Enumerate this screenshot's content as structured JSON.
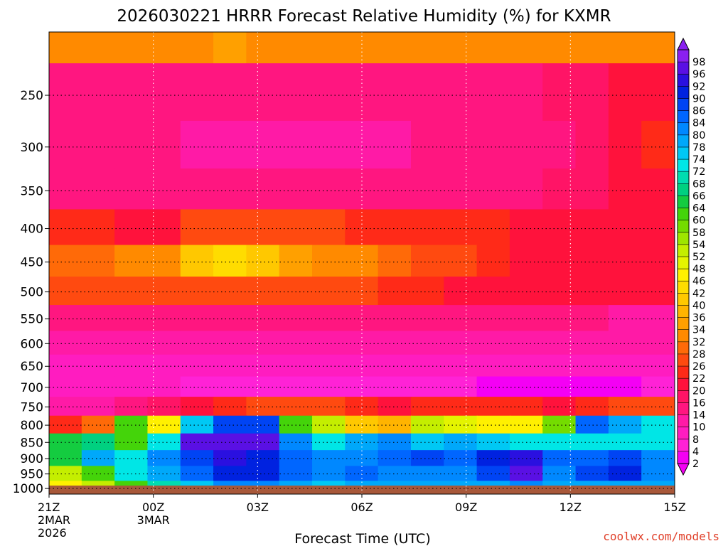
{
  "chart_data": {
    "type": "heatmap",
    "title": "2026030221 HRRR Forecast Relative Humidity (%) for KXMR",
    "xlabel": "Forecast Time (UTC)",
    "ylabel": "",
    "credit": "coolwx.com/models",
    "x_ticks": [
      {
        "hour": 0,
        "lines": [
          "21Z",
          "2MAR",
          "2026"
        ]
      },
      {
        "hour": 3,
        "lines": [
          "00Z",
          "3MAR"
        ]
      },
      {
        "hour": 6,
        "lines": [
          "03Z"
        ]
      },
      {
        "hour": 9,
        "lines": [
          "06Z"
        ]
      },
      {
        "hour": 12,
        "lines": [
          "09Z"
        ]
      },
      {
        "hour": 15,
        "lines": [
          "12Z"
        ]
      },
      {
        "hour": 18,
        "lines": [
          "15Z"
        ]
      }
    ],
    "y_ticks": [
      250,
      300,
      350,
      400,
      450,
      500,
      550,
      600,
      650,
      700,
      750,
      800,
      850,
      900,
      950,
      1000
    ],
    "ylim": [
      1020,
      200
    ],
    "y_scale": "log",
    "xlim": [
      0,
      18
    ],
    "grid": true,
    "colorbar": {
      "levels": [
        2,
        4,
        8,
        10,
        14,
        16,
        20,
        22,
        26,
        28,
        32,
        34,
        36,
        40,
        42,
        46,
        48,
        52,
        54,
        58,
        60,
        64,
        66,
        68,
        72,
        74,
        78,
        80,
        84,
        86,
        90,
        92,
        96,
        98
      ],
      "colors": [
        "#f400f4",
        "#ff22d6",
        "#ff1cc0",
        "#ff1aa6",
        "#ff1680",
        "#ff1466",
        "#ff123c",
        "#ff2a18",
        "#ff4a10",
        "#ff6a08",
        "#ff8a00",
        "#ffa000",
        "#ffb400",
        "#ffc800",
        "#ffdc00",
        "#fff000",
        "#e4f400",
        "#c4ee00",
        "#9ee600",
        "#74dc00",
        "#44d40a",
        "#14cc40",
        "#00d080",
        "#00dcb0",
        "#00e6e6",
        "#00c8f4",
        "#00a8fa",
        "#0088ff",
        "#0066ff",
        "#0044f4",
        "#0022e0",
        "#2a10e0",
        "#5a10e4",
        "#8a20f0"
      ]
    },
    "pressure_levels": [
      200,
      250,
      300,
      350,
      400,
      450,
      500,
      550,
      600,
      650,
      700,
      750,
      800,
      850,
      900,
      950,
      1000
    ],
    "rh_values": [
      [
        30,
        30,
        30,
        30,
        32,
        34,
        32,
        30,
        30,
        30,
        30,
        30,
        30,
        30,
        30,
        30,
        30,
        30,
        30
      ],
      [
        14,
        14,
        12,
        12,
        12,
        12,
        12,
        12,
        14,
        14,
        14,
        14,
        14,
        14,
        14,
        16,
        16,
        18,
        20
      ],
      [
        14,
        12,
        12,
        12,
        10,
        10,
        10,
        10,
        10,
        10,
        10,
        12,
        12,
        12,
        14,
        14,
        16,
        18,
        22
      ],
      [
        14,
        14,
        14,
        14,
        12,
        12,
        12,
        12,
        12,
        12,
        12,
        12,
        14,
        14,
        14,
        16,
        16,
        18,
        18
      ],
      [
        22,
        22,
        20,
        20,
        24,
        26,
        26,
        24,
        24,
        22,
        22,
        22,
        22,
        22,
        20,
        20,
        18,
        18,
        18
      ],
      [
        28,
        28,
        30,
        32,
        38,
        42,
        38,
        34,
        32,
        30,
        28,
        26,
        24,
        22,
        20,
        20,
        20,
        20,
        20
      ],
      [
        24,
        24,
        24,
        24,
        26,
        26,
        26,
        26,
        24,
        24,
        22,
        22,
        20,
        18,
        18,
        18,
        18,
        18,
        18
      ],
      [
        14,
        14,
        14,
        14,
        14,
        14,
        14,
        14,
        14,
        14,
        12,
        12,
        12,
        12,
        12,
        12,
        12,
        10,
        10
      ],
      [
        10,
        10,
        10,
        10,
        10,
        10,
        10,
        10,
        10,
        10,
        10,
        10,
        10,
        10,
        10,
        10,
        10,
        10,
        10
      ],
      [
        8,
        8,
        8,
        6,
        6,
        6,
        6,
        6,
        6,
        6,
        8,
        8,
        8,
        8,
        8,
        8,
        6,
        6,
        6
      ],
      [
        6,
        6,
        6,
        6,
        4,
        4,
        4,
        4,
        4,
        4,
        4,
        4,
        4,
        2,
        2,
        2,
        2,
        2,
        4
      ],
      [
        10,
        10,
        12,
        16,
        20,
        22,
        26,
        26,
        24,
        22,
        20,
        22,
        22,
        22,
        22,
        20,
        22,
        24,
        24
      ],
      [
        22,
        28,
        60,
        46,
        74,
        86,
        86,
        60,
        50,
        40,
        36,
        52,
        48,
        46,
        46,
        56,
        82,
        76,
        70
      ],
      [
        62,
        66,
        60,
        72,
        94,
        94,
        94,
        80,
        70,
        76,
        80,
        74,
        76,
        74,
        70,
        72,
        72,
        72,
        72
      ],
      [
        62,
        76,
        72,
        80,
        86,
        92,
        90,
        84,
        80,
        80,
        84,
        86,
        84,
        90,
        92,
        84,
        82,
        86,
        80
      ],
      [
        52,
        60,
        72,
        78,
        84,
        90,
        90,
        82,
        80,
        82,
        80,
        80,
        80,
        86,
        94,
        80,
        86,
        90,
        80
      ],
      [
        46,
        52,
        60,
        68,
        74,
        80,
        80,
        76,
        74,
        76,
        76,
        76,
        76,
        78,
        80,
        76,
        76,
        78,
        78
      ]
    ]
  }
}
